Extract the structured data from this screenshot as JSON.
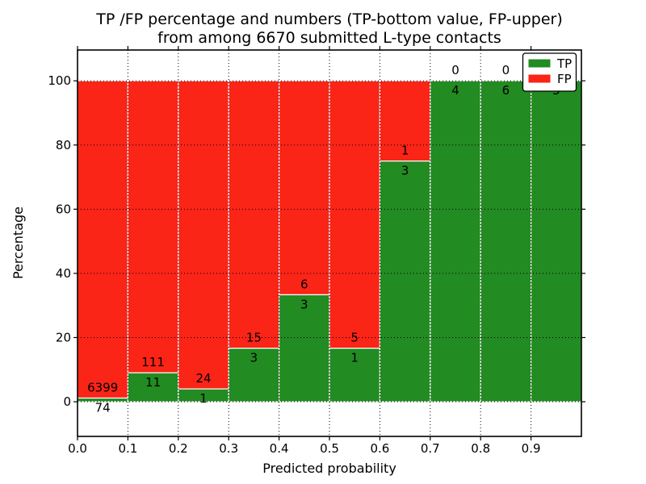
{
  "title": {
    "line1": "TP /FP percentage and numbers (TP-bottom value, FP-upper)",
    "line2": "from among 6670 submitted L-type contacts"
  },
  "total_contacts": 6670,
  "chart_data": {
    "type": "bar",
    "stacked": true,
    "title": "TP /FP percentage and numbers (TP-bottom value, FP-upper) from among 6670 submitted L-type contacts",
    "xlabel": "Predicted probability",
    "ylabel": "Percentage",
    "xlim": [
      0.0,
      1.0
    ],
    "ylim": [
      -10.8,
      109.6
    ],
    "x_tick_values": [
      0.0,
      0.1,
      0.2,
      0.3,
      0.4,
      0.5,
      0.6,
      0.7,
      0.8,
      0.9
    ],
    "x_tick_labels": [
      "0.0",
      "0.1",
      "0.2",
      "0.3",
      "0.4",
      "0.5",
      "0.6",
      "0.7",
      "0.8",
      "0.9"
    ],
    "y_tick_values": [
      0,
      20,
      40,
      60,
      80,
      100
    ],
    "y_tick_labels": [
      "0",
      "20",
      "40",
      "60",
      "80",
      "100"
    ],
    "grid": {
      "style": "dotted",
      "color": "#000000",
      "above_bars": true
    },
    "bar_edge_color": "#ffffff",
    "series": [
      {
        "name": "TP",
        "color": "#228b22",
        "position": "bottom"
      },
      {
        "name": "FP",
        "color": "#fa2417",
        "position": "top"
      }
    ],
    "bins": [
      {
        "x0": 0.0,
        "x1": 0.1,
        "tp": 74,
        "fp": 6399,
        "tp_pct": 1.14
      },
      {
        "x0": 0.1,
        "x1": 0.2,
        "tp": 11,
        "fp": 111,
        "tp_pct": 9.02
      },
      {
        "x0": 0.2,
        "x1": 0.3,
        "tp": 1,
        "fp": 24,
        "tp_pct": 4.0
      },
      {
        "x0": 0.3,
        "x1": 0.4,
        "tp": 3,
        "fp": 15,
        "tp_pct": 16.67
      },
      {
        "x0": 0.4,
        "x1": 0.5,
        "tp": 3,
        "fp": 6,
        "tp_pct": 33.33
      },
      {
        "x0": 0.5,
        "x1": 0.6,
        "tp": 1,
        "fp": 5,
        "tp_pct": 16.67
      },
      {
        "x0": 0.6,
        "x1": 0.7,
        "tp": 3,
        "fp": 1,
        "tp_pct": 75.0
      },
      {
        "x0": 0.7,
        "x1": 0.8,
        "tp": 4,
        "fp": 0,
        "tp_pct": 100.0
      },
      {
        "x0": 0.8,
        "x1": 0.9,
        "tp": 6,
        "fp": 0,
        "tp_pct": 100.0
      },
      {
        "x0": 0.9,
        "x1": 1.0,
        "tp": 3,
        "fp": 0,
        "tp_pct": 100.0
      }
    ],
    "legend": {
      "position": "upper right",
      "entries": [
        {
          "label": "TP",
          "color": "#228b22"
        },
        {
          "label": "FP",
          "color": "#fa2417"
        }
      ]
    }
  }
}
